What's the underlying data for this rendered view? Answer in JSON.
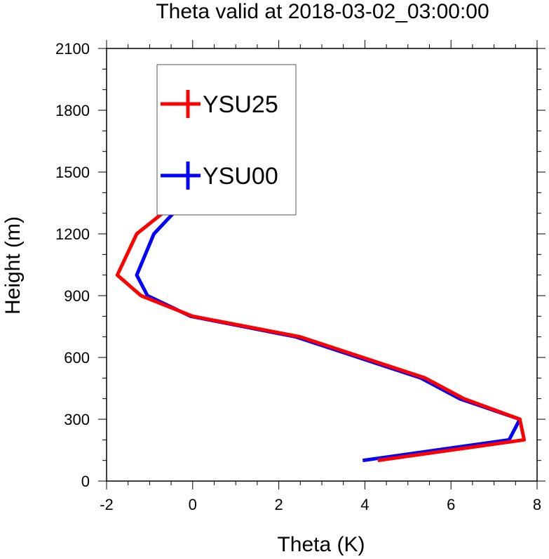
{
  "chart_data": {
    "type": "line",
    "title": "Theta valid at 2018-03-02_03:00:00",
    "xlabel": "Theta (K)",
    "ylabel": "Height (m)",
    "xlim": [
      -2,
      8
    ],
    "ylim": [
      0,
      2100
    ],
    "x_ticks": [
      -2,
      0,
      2,
      4,
      6,
      8
    ],
    "y_ticks": [
      0,
      300,
      600,
      900,
      1200,
      1500,
      1800,
      2100
    ],
    "legend_position": "top-left",
    "grid": false,
    "series": [
      {
        "name": "YSU25",
        "color": "#ff0000",
        "points": [
          {
            "x": 4.3,
            "y": 100
          },
          {
            "x": 7.7,
            "y": 200
          },
          {
            "x": 7.6,
            "y": 300
          },
          {
            "x": 6.3,
            "y": 400
          },
          {
            "x": 5.4,
            "y": 500
          },
          {
            "x": 2.5,
            "y": 700
          },
          {
            "x": 0.0,
            "y": 800
          },
          {
            "x": -1.2,
            "y": 900
          },
          {
            "x": -1.75,
            "y": 1000
          },
          {
            "x": -1.3,
            "y": 1200
          },
          {
            "x": -0.7,
            "y": 1300
          },
          {
            "x": -0.3,
            "y": 1400
          },
          {
            "x": -0.1,
            "y": 1600
          },
          {
            "x": 0.0,
            "y": 2000
          }
        ]
      },
      {
        "name": "YSU00",
        "color": "#0000ff",
        "points": [
          {
            "x": 3.95,
            "y": 100
          },
          {
            "x": 7.35,
            "y": 200
          },
          {
            "x": 7.6,
            "y": 300
          },
          {
            "x": 6.2,
            "y": 400
          },
          {
            "x": 5.3,
            "y": 500
          },
          {
            "x": 2.4,
            "y": 700
          },
          {
            "x": -0.05,
            "y": 800
          },
          {
            "x": -1.05,
            "y": 900
          },
          {
            "x": -1.3,
            "y": 1000
          },
          {
            "x": -0.9,
            "y": 1200
          },
          {
            "x": -0.45,
            "y": 1300
          },
          {
            "x": -0.2,
            "y": 1400
          },
          {
            "x": -0.05,
            "y": 1600
          },
          {
            "x": 0.0,
            "y": 2000
          }
        ]
      }
    ]
  }
}
